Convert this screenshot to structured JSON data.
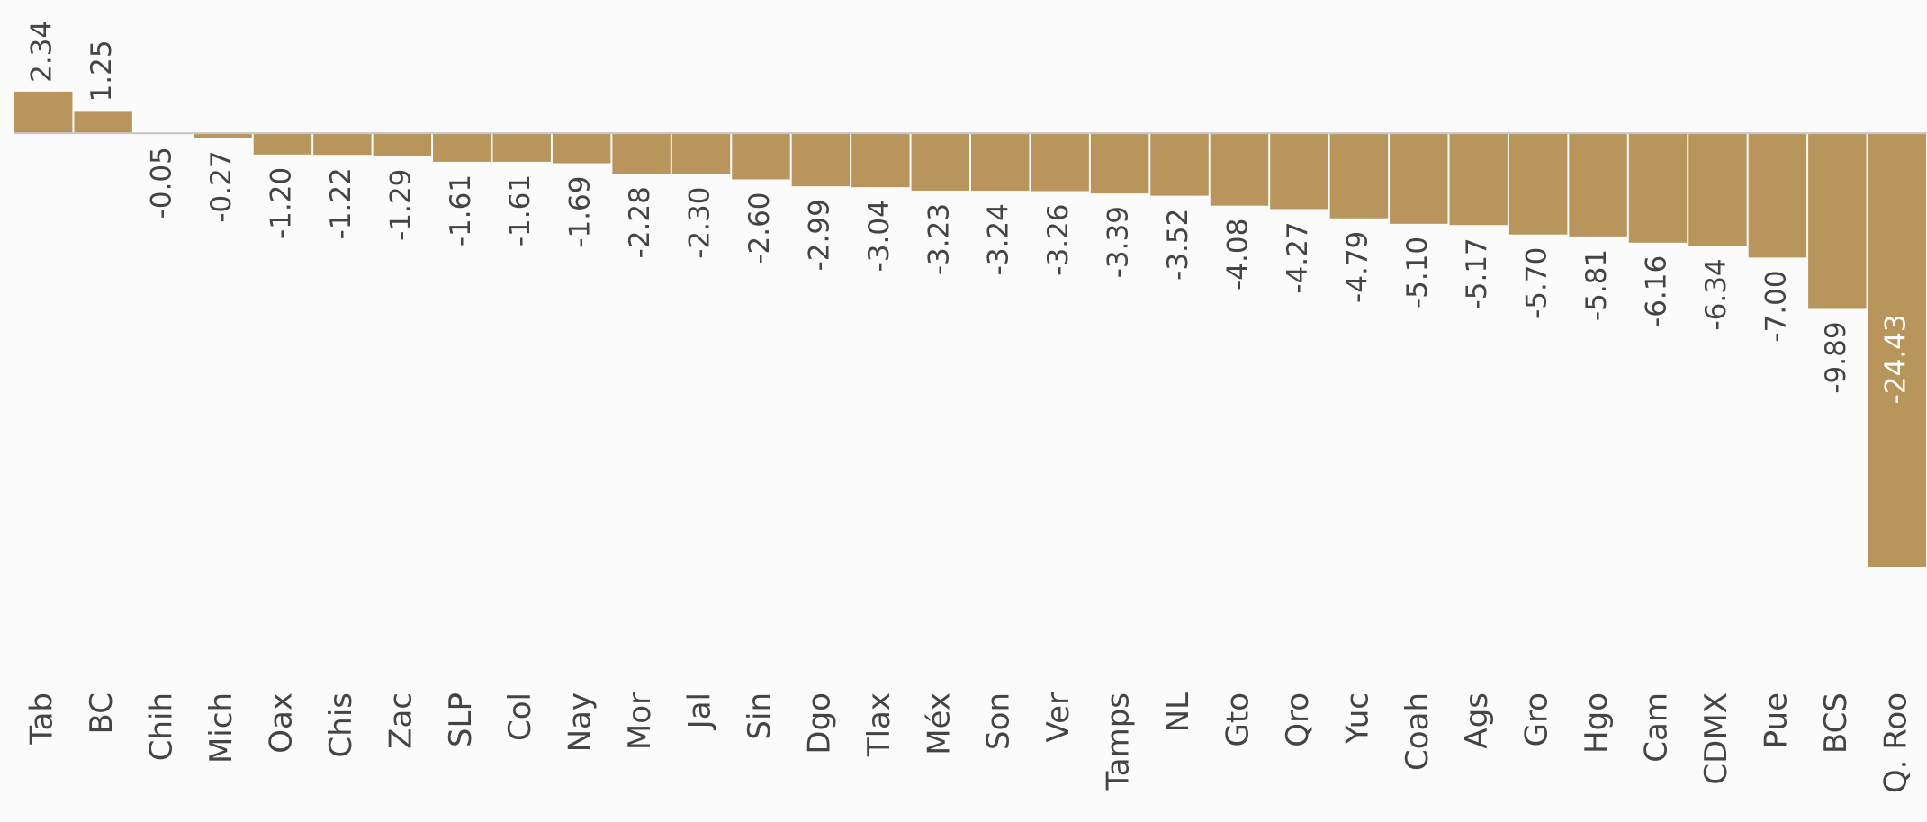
{
  "chart_data": {
    "type": "bar",
    "categories": [
      "Tab",
      "BC",
      "Chih",
      "Mich",
      "Oax",
      "Chis",
      "Zac",
      "SLP",
      "Col",
      "Nay",
      "Mor",
      "Jal",
      "Sin",
      "Dgo",
      "Tlax",
      "Méx",
      "Son",
      "Ver",
      "Tamps",
      "NL",
      "Gto",
      "Qro",
      "Yuc",
      "Coah",
      "Ags",
      "Gro",
      "Hgo",
      "Cam",
      "CDMX",
      "Pue",
      "BCS",
      "Q. Roo"
    ],
    "values": [
      2.34,
      1.25,
      -0.05,
      -0.27,
      -1.2,
      -1.22,
      -1.29,
      -1.61,
      -1.61,
      -1.69,
      -2.28,
      -2.3,
      -2.6,
      -2.99,
      -3.04,
      -3.23,
      -3.24,
      -3.26,
      -3.39,
      -3.52,
      -4.08,
      -4.27,
      -4.79,
      -5.1,
      -5.17,
      -5.7,
      -5.81,
      -6.16,
      -6.34,
      -7.0,
      -9.89,
      -24.43
    ],
    "value_labels": [
      "2.34",
      "1.25",
      "-0.05",
      "-0.27",
      "-1.20",
      "-1.22",
      "-1.29",
      "-1.61",
      "-1.61",
      "-1.69",
      "-2.28",
      "-2.30",
      "-2.60",
      "-2.99",
      "-3.04",
      "-3.23",
      "-3.24",
      "-3.26",
      "-3.39",
      "-3.52",
      "-4.08",
      "-4.27",
      "-4.79",
      "-5.10",
      "-5.17",
      "-5.70",
      "-5.81",
      "-6.16",
      "-6.34",
      "-7.00",
      "-9.89",
      "-24.43"
    ],
    "color": "#b8955a",
    "ylim": [
      -30,
      7.5
    ]
  }
}
